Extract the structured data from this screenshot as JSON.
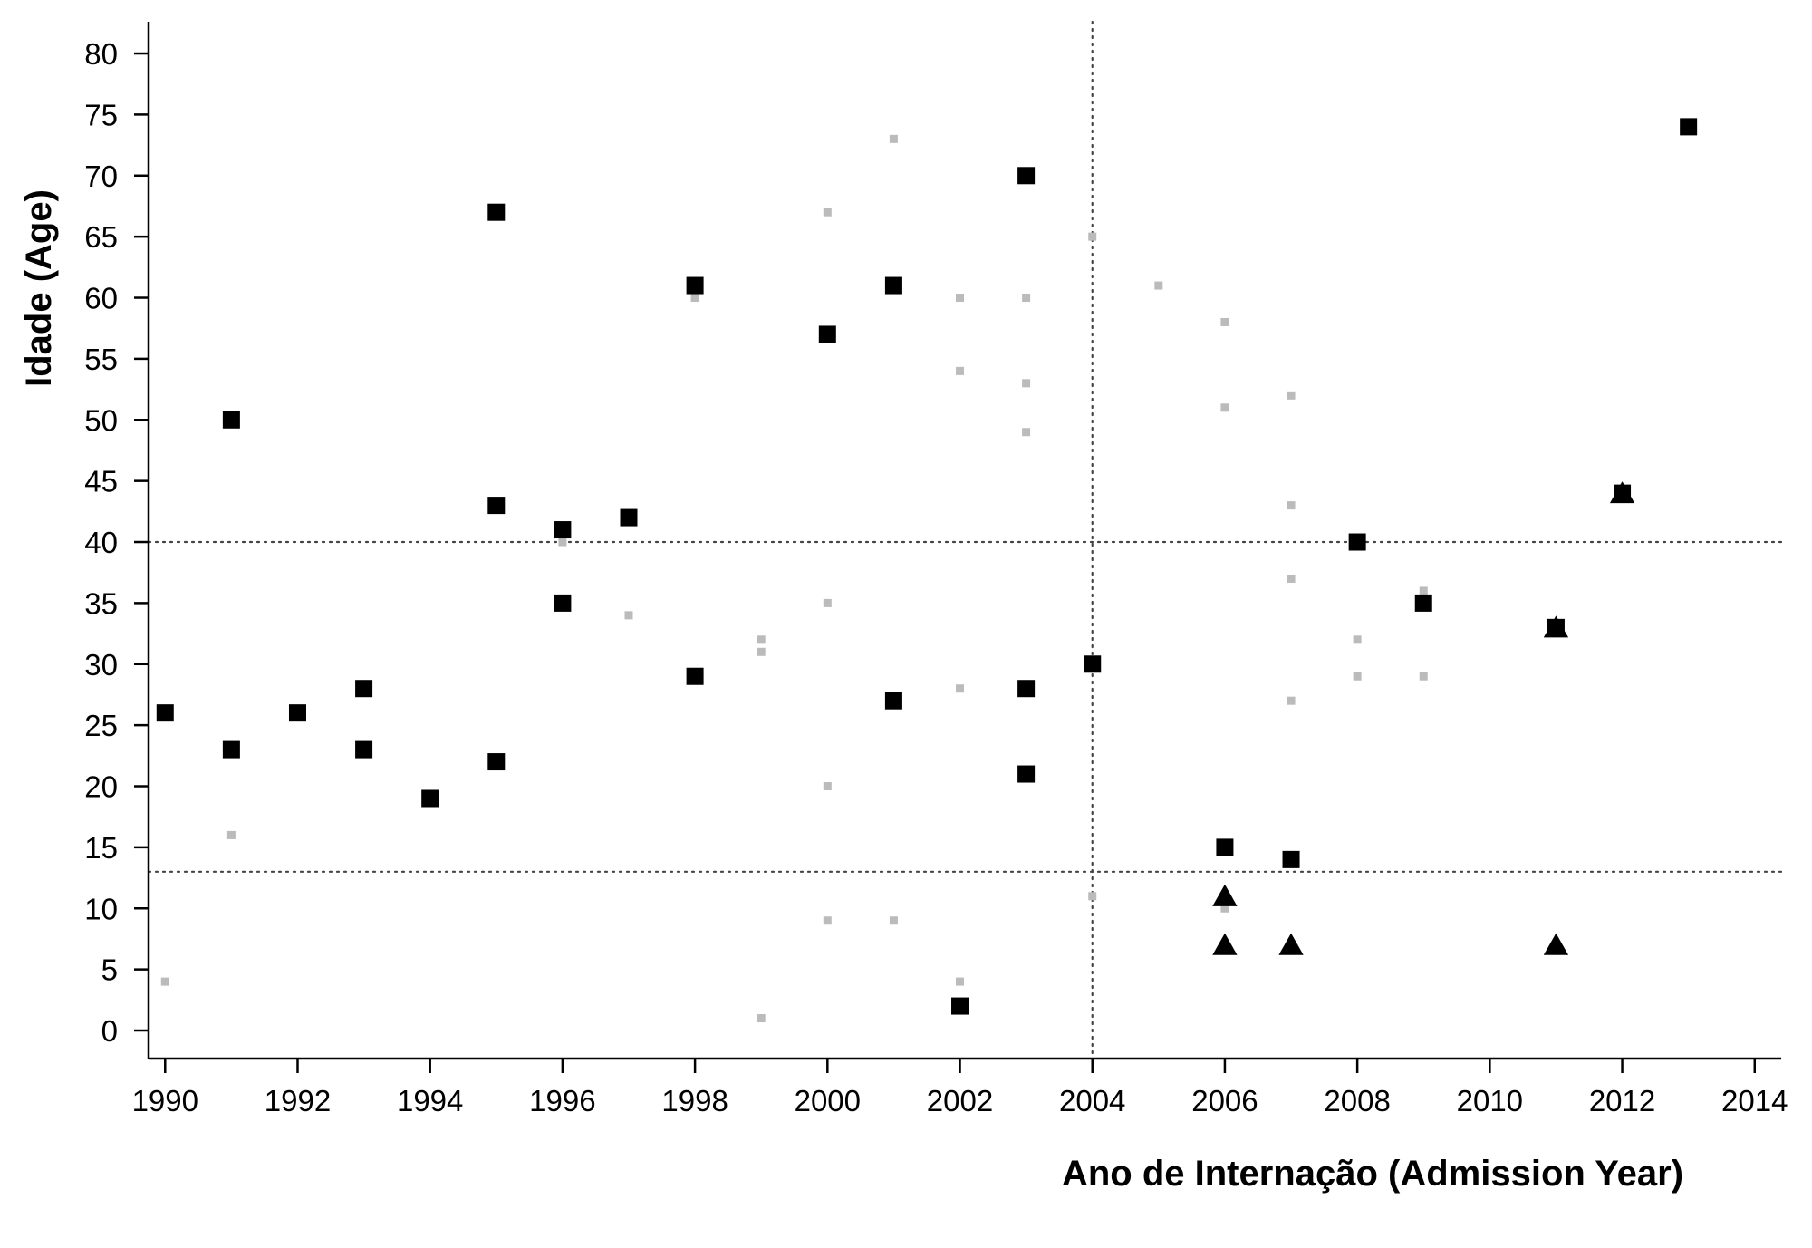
{
  "chart_data": {
    "type": "scatter",
    "title": "",
    "xlabel": "Ano de Internação (Admission Year)",
    "ylabel": "Idade (Age)",
    "xlim": [
      1989.75,
      2014.4
    ],
    "ylim": [
      -2.3,
      82.6
    ],
    "xticks": [
      1990,
      1992,
      1994,
      1996,
      1998,
      2000,
      2002,
      2004,
      2006,
      2008,
      2010,
      2012,
      2014
    ],
    "yticks": [
      0,
      5,
      10,
      15,
      20,
      25,
      30,
      35,
      40,
      45,
      50,
      55,
      60,
      65,
      70,
      75,
      80
    ],
    "grid": false,
    "legend": "none",
    "reference_lines": {
      "vertical_x": [
        2004
      ],
      "horizontal_y": [
        40,
        13
      ]
    },
    "series": [
      {
        "marker": "square-large",
        "color": "#000000",
        "points": [
          [
            1990,
            26
          ],
          [
            1991,
            50
          ],
          [
            1991,
            23
          ],
          [
            1992,
            26
          ],
          [
            1993,
            28
          ],
          [
            1993,
            23
          ],
          [
            1994,
            19
          ],
          [
            1995,
            67
          ],
          [
            1995,
            43
          ],
          [
            1995,
            22
          ],
          [
            1996,
            41
          ],
          [
            1996,
            35
          ],
          [
            1997,
            42
          ],
          [
            1998,
            61
          ],
          [
            1998,
            29
          ],
          [
            2000,
            57
          ],
          [
            2001,
            61
          ],
          [
            2001,
            27
          ],
          [
            2002,
            2
          ],
          [
            2003,
            70
          ],
          [
            2003,
            28
          ],
          [
            2003,
            21
          ],
          [
            2004,
            30
          ],
          [
            2006,
            15
          ],
          [
            2007,
            14
          ],
          [
            2008,
            40
          ],
          [
            2009,
            35
          ],
          [
            2011,
            33
          ],
          [
            2012,
            44
          ],
          [
            2013,
            74
          ]
        ]
      },
      {
        "marker": "square-small",
        "color": "#bbbbbb",
        "points": [
          [
            1990,
            4
          ],
          [
            1991,
            16
          ],
          [
            1996,
            40
          ],
          [
            1997,
            34
          ],
          [
            1998,
            60
          ],
          [
            1999,
            32
          ],
          [
            1999,
            31
          ],
          [
            1999,
            1
          ],
          [
            2000,
            67
          ],
          [
            2000,
            35
          ],
          [
            2000,
            20
          ],
          [
            2000,
            9
          ],
          [
            2001,
            73
          ],
          [
            2001,
            9
          ],
          [
            2002,
            60
          ],
          [
            2002,
            54
          ],
          [
            2002,
            28
          ],
          [
            2002,
            4
          ],
          [
            2003,
            60
          ],
          [
            2003,
            53
          ],
          [
            2003,
            49
          ],
          [
            2004,
            65
          ],
          [
            2004,
            11
          ],
          [
            2005,
            61
          ],
          [
            2006,
            58
          ],
          [
            2006,
            51
          ],
          [
            2006,
            10
          ],
          [
            2007,
            52
          ],
          [
            2007,
            43
          ],
          [
            2007,
            37
          ],
          [
            2007,
            27
          ],
          [
            2008,
            32
          ],
          [
            2008,
            29
          ],
          [
            2009,
            36
          ],
          [
            2009,
            29
          ]
        ]
      },
      {
        "marker": "triangle",
        "color": "#000000",
        "points": [
          [
            2006,
            11
          ],
          [
            2006,
            7
          ],
          [
            2007,
            7
          ],
          [
            2011,
            7
          ],
          [
            2011,
            33
          ],
          [
            2012,
            44
          ]
        ]
      }
    ]
  }
}
